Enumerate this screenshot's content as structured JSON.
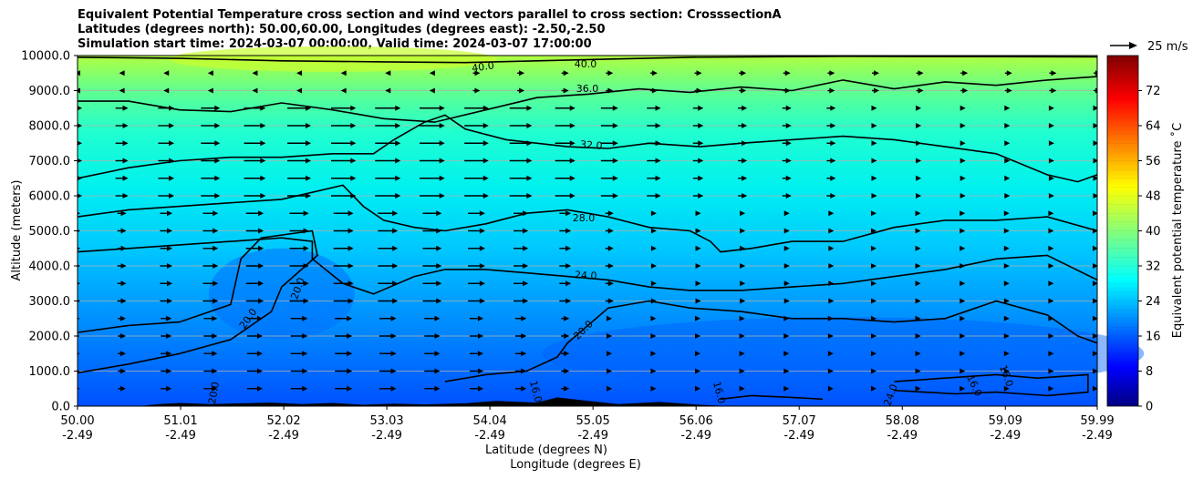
{
  "chart_data": {
    "type": "heatmap",
    "title_lines": [
      "Equivalent Potential Temperature cross section and wind vectors parallel to cross section: CrosssectionA",
      "Latitudes (degrees north): 50.00,60.00, Longitudes (degrees east): -2.50,-2.50",
      "Simulation start time: 2024-03-07 00:00:00, Valid time: 2024-03-07 17:00:00"
    ],
    "ylabel": "Altitude (meters)",
    "xlabel_lines": [
      "Latitude (degrees N)",
      "Longitude (degrees E)"
    ],
    "x_range": [
      50.0,
      59.99
    ],
    "ylim": [
      0,
      10000
    ],
    "x_ticks": [
      {
        "lat": "50.00",
        "lon": "-2.49",
        "value": 50.0
      },
      {
        "lat": "51.01",
        "lon": "-2.49",
        "value": 51.01
      },
      {
        "lat": "52.02",
        "lon": "-2.49",
        "value": 52.02
      },
      {
        "lat": "53.03",
        "lon": "-2.49",
        "value": 53.03
      },
      {
        "lat": "54.04",
        "lon": "-2.49",
        "value": 54.04
      },
      {
        "lat": "55.05",
        "lon": "-2.49",
        "value": 55.05
      },
      {
        "lat": "56.06",
        "lon": "-2.49",
        "value": 56.06
      },
      {
        "lat": "57.07",
        "lon": "-2.49",
        "value": 57.07
      },
      {
        "lat": "58.08",
        "lon": "-2.49",
        "value": 58.08
      },
      {
        "lat": "59.09",
        "lon": "-2.49",
        "value": 59.09
      },
      {
        "lat": "59.99",
        "lon": "-2.49",
        "value": 59.99
      }
    ],
    "y_ticks": [
      "0.0",
      "1000.0",
      "2000.0",
      "3000.0",
      "4000.0",
      "5000.0",
      "6000.0",
      "7000.0",
      "8000.0",
      "9000.0",
      "10000.0"
    ],
    "y_tick_values": [
      0,
      1000,
      2000,
      3000,
      4000,
      5000,
      6000,
      7000,
      8000,
      9000,
      10000
    ],
    "grid": "horizontal",
    "colorbar": {
      "label": "Equivalent potential temperature $^\\circ$C",
      "label_text": "Equivalent potential temperature ˚C",
      "range": [
        0,
        80
      ],
      "ticks": [
        "0",
        "8",
        "16",
        "24",
        "32",
        "40",
        "48",
        "56",
        "64",
        "72"
      ],
      "tick_values": [
        0,
        8,
        16,
        24,
        32,
        40,
        48,
        56,
        64,
        72
      ],
      "colormap": "jet"
    },
    "wind_key_label": "25 m/s",
    "contour_labels": [
      "40.0",
      "40.0",
      "36.0",
      "32.0",
      "28.0",
      "24.0",
      "20.0",
      "20.0",
      "20.0",
      "20.0",
      "16.0",
      "16.0",
      "16.0",
      "16.0",
      "24.0"
    ],
    "contours": [
      {
        "level": 40,
        "points": [
          [
            50.0,
            9950
          ],
          [
            51.0,
            9920
          ],
          [
            52.0,
            9850
          ],
          [
            53.0,
            9820
          ],
          [
            53.8,
            9800
          ],
          [
            54.5,
            9850
          ],
          [
            55.2,
            9900
          ],
          [
            56.0,
            9950
          ],
          [
            57.5,
            9980
          ],
          [
            59.0,
            9970
          ],
          [
            59.99,
            9960
          ]
        ]
      },
      {
        "level": 36,
        "points": [
          [
            50.0,
            8700
          ],
          [
            50.5,
            8700
          ],
          [
            51.0,
            8450
          ],
          [
            51.5,
            8400
          ],
          [
            52.0,
            8650
          ],
          [
            52.5,
            8450
          ],
          [
            53.0,
            8200
          ],
          [
            53.5,
            8100
          ],
          [
            54.0,
            8450
          ],
          [
            54.5,
            8800
          ],
          [
            55.0,
            8900
          ],
          [
            55.5,
            9050
          ],
          [
            56.0,
            8950
          ],
          [
            56.5,
            9100
          ],
          [
            57.0,
            9000
          ],
          [
            57.5,
            9300
          ],
          [
            58.0,
            9050
          ],
          [
            58.5,
            9250
          ],
          [
            59.0,
            9150
          ],
          [
            59.5,
            9300
          ],
          [
            59.99,
            9400
          ]
        ]
      },
      {
        "level": 32,
        "points": [
          [
            50.0,
            6500
          ],
          [
            50.5,
            6800
          ],
          [
            51.0,
            7000
          ],
          [
            51.5,
            7100
          ],
          [
            52.0,
            7100
          ],
          [
            52.5,
            7200
          ],
          [
            52.9,
            7200
          ],
          [
            53.1,
            7600
          ],
          [
            53.4,
            8100
          ],
          [
            53.6,
            8300
          ],
          [
            53.8,
            7900
          ],
          [
            54.2,
            7600
          ],
          [
            54.8,
            7400
          ],
          [
            55.2,
            7350
          ],
          [
            55.6,
            7500
          ],
          [
            56.1,
            7400
          ],
          [
            56.5,
            7500
          ],
          [
            57.0,
            7600
          ],
          [
            57.5,
            7700
          ],
          [
            58.0,
            7600
          ],
          [
            58.5,
            7400
          ],
          [
            59.0,
            7200
          ],
          [
            59.5,
            6600
          ],
          [
            59.8,
            6400
          ],
          [
            59.99,
            6600
          ]
        ]
      },
      {
        "level": 28,
        "points": [
          [
            50.0,
            5400
          ],
          [
            50.5,
            5600
          ],
          [
            51.0,
            5700
          ],
          [
            51.5,
            5800
          ],
          [
            52.0,
            5900
          ],
          [
            52.6,
            6300
          ],
          [
            52.8,
            5700
          ],
          [
            53.0,
            5300
          ],
          [
            53.3,
            5100
          ],
          [
            53.6,
            5000
          ],
          [
            54.0,
            5200
          ],
          [
            54.4,
            5500
          ],
          [
            54.8,
            5600
          ],
          [
            55.2,
            5400
          ],
          [
            55.6,
            5100
          ],
          [
            56.0,
            5000
          ],
          [
            56.2,
            4700
          ],
          [
            56.3,
            4400
          ],
          [
            56.6,
            4500
          ],
          [
            57.0,
            4700
          ],
          [
            57.5,
            4700
          ],
          [
            58.0,
            5100
          ],
          [
            58.5,
            5300
          ],
          [
            59.0,
            5300
          ],
          [
            59.5,
            5400
          ],
          [
            59.99,
            5000
          ]
        ]
      },
      {
        "level": 24,
        "points": [
          [
            50.0,
            4400
          ],
          [
            50.5,
            4500
          ],
          [
            51.0,
            4600
          ],
          [
            51.5,
            4700
          ],
          [
            52.0,
            4800
          ],
          [
            52.3,
            4700
          ],
          [
            52.3,
            4200
          ],
          [
            52.6,
            3500
          ],
          [
            52.9,
            3200
          ],
          [
            53.3,
            3700
          ],
          [
            53.6,
            3900
          ],
          [
            54.0,
            3900
          ],
          [
            54.4,
            3800
          ],
          [
            54.8,
            3700
          ],
          [
            55.2,
            3600
          ],
          [
            55.6,
            3400
          ],
          [
            56.0,
            3300
          ],
          [
            56.5,
            3300
          ],
          [
            57.0,
            3400
          ],
          [
            57.5,
            3500
          ],
          [
            58.0,
            3700
          ],
          [
            58.5,
            3900
          ],
          [
            59.0,
            4200
          ],
          [
            59.5,
            4300
          ],
          [
            59.99,
            3600
          ]
        ]
      },
      {
        "level": 20,
        "points": [
          [
            50.0,
            2100
          ],
          [
            50.5,
            2300
          ],
          [
            51.0,
            2400
          ],
          [
            51.5,
            2900
          ],
          [
            51.6,
            4200
          ],
          [
            51.8,
            4800
          ],
          [
            52.3,
            5000
          ],
          [
            52.35,
            4300
          ],
          [
            52.0,
            3400
          ],
          [
            51.9,
            2700
          ],
          [
            51.5,
            1900
          ],
          [
            51.0,
            1500
          ],
          [
            50.5,
            1200
          ],
          [
            50.0,
            950
          ]
        ]
      },
      {
        "level": 20,
        "points": [
          [
            53.6,
            700
          ],
          [
            54.0,
            900
          ],
          [
            54.4,
            1000
          ],
          [
            54.7,
            1400
          ],
          [
            54.8,
            1800
          ],
          [
            55.2,
            2800
          ],
          [
            55.6,
            3000
          ],
          [
            56.0,
            2800
          ],
          [
            56.5,
            2700
          ],
          [
            57.0,
            2500
          ],
          [
            57.5,
            2500
          ],
          [
            58.0,
            2400
          ],
          [
            58.5,
            2500
          ],
          [
            59.0,
            3000
          ],
          [
            59.5,
            2600
          ],
          [
            59.8,
            2000
          ],
          [
            59.99,
            1800
          ]
        ]
      },
      {
        "level": 16,
        "points": [
          [
            58.0,
            700
          ],
          [
            58.5,
            800
          ],
          [
            59.0,
            900
          ],
          [
            59.4,
            800
          ],
          [
            59.9,
            900
          ],
          [
            59.9,
            400
          ],
          [
            59.5,
            300
          ],
          [
            59.0,
            400
          ],
          [
            58.6,
            350
          ],
          [
            58.0,
            450
          ]
        ]
      },
      {
        "level": 16,
        "points": [
          [
            56.3,
            200
          ],
          [
            56.6,
            300
          ],
          [
            57.0,
            250
          ],
          [
            57.3,
            200
          ]
        ]
      }
    ]
  }
}
